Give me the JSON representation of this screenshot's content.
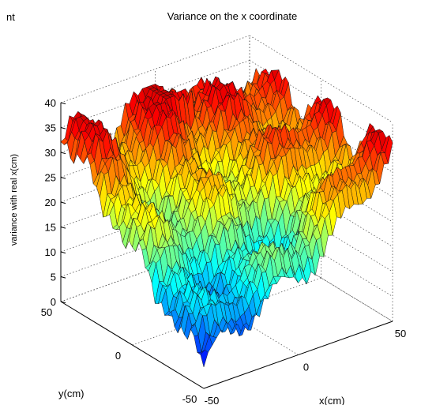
{
  "page": {
    "corner_text": "nt"
  },
  "chart_data": {
    "type": "surface3d",
    "title": "Variance on the x coordinate",
    "xlabel": "x(cm)",
    "ylabel": "y(cm)",
    "zlabel": "variance with real x(cm)",
    "xlim": [
      -50,
      50
    ],
    "ylim": [
      -50,
      50
    ],
    "zlim": [
      0,
      40
    ],
    "x_ticks": [
      "-50",
      "0",
      "50"
    ],
    "y_ticks": [
      "50",
      "0",
      "-50"
    ],
    "z_ticks": [
      "0",
      "5",
      "10",
      "15",
      "20",
      "25",
      "30",
      "35",
      "40"
    ],
    "colormap": "jet",
    "grid": true,
    "box": true,
    "approx_surface": {
      "description_values": {
        "max_variance_cm": 37,
        "corner_values": {
          "x-50_y50": 35,
          "x50_y50": 33,
          "x50_y-50": 36,
          "x-50_y-50": 4
        },
        "min_variance_cm": 0
      }
    }
  }
}
